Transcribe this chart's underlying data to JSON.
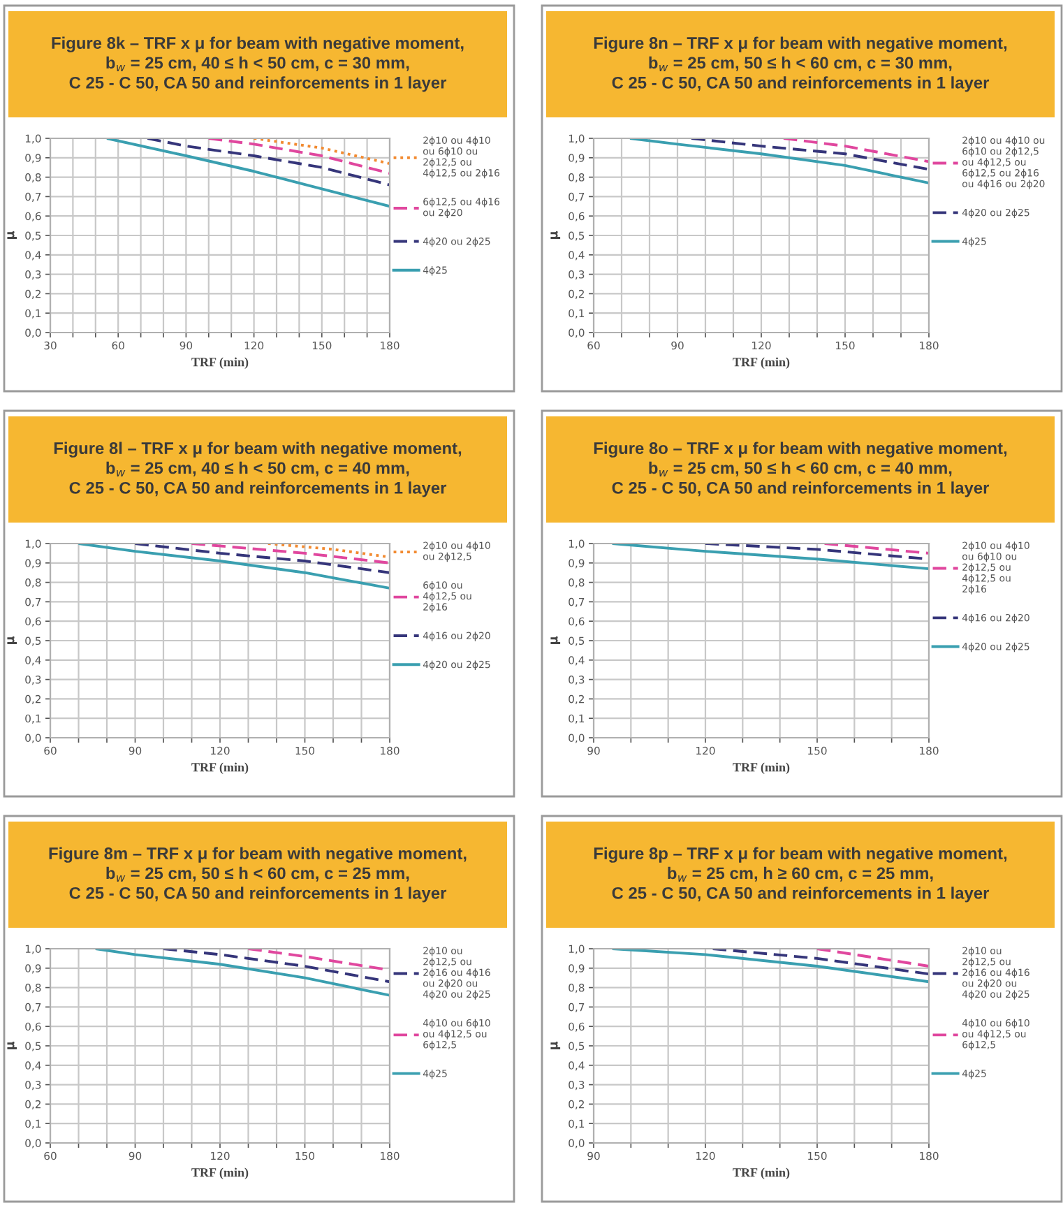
{
  "chart_data": [
    {
      "type": "line",
      "title": "Figure 8k – TRF x μ for beam with negative moment,\nb$_{w}$ = 25 cm, 40 ≤ h < 50 cm, c = 30 mm,\nC 25 - C 50, CA 50 and reinforcements in 1 layer",
      "xlabel": "TRF (min)",
      "ylabel": "μ",
      "xlim": [
        30,
        180
      ],
      "xticks": [
        30,
        {
          "value": 40,
          "label": null
        },
        {
          "value": 50,
          "label": null
        },
        60,
        {
          "value": 70,
          "label": null
        },
        {
          "value": 80,
          "label": null
        },
        90,
        {
          "value": 100,
          "label": null
        },
        {
          "value": 110,
          "label": null
        },
        120,
        {
          "value": 130,
          "label": null
        },
        {
          "value": 140,
          "label": null
        },
        150,
        {
          "value": 160,
          "label": null
        },
        {
          "value": 170,
          "label": null
        },
        180
      ],
      "ylim": [
        0,
        1
      ],
      "yticks": [
        {
          "value": 0,
          "label": "0,0"
        },
        {
          "value": 0.1,
          "label": "0,1"
        },
        {
          "value": 0.2,
          "label": "0,2"
        },
        {
          "value": 0.3,
          "label": "0,3"
        },
        {
          "value": 0.4,
          "label": "0,4"
        },
        {
          "value": 0.5,
          "label": "0,5"
        },
        {
          "value": 0.6,
          "label": "0,6"
        },
        {
          "value": 0.7,
          "label": "0,7"
        },
        {
          "value": 0.8,
          "label": "0,8"
        },
        {
          "value": 0.9,
          "label": "0,9"
        },
        {
          "value": 1,
          "label": "1,0"
        }
      ],
      "grid": true,
      "legend": "right",
      "series": [
        {
          "name": "2ϕ10 ou 4ϕ10\nou 6ϕ10 ou\n2ϕ12,5 ou\n4ϕ12,5 ou 2ϕ16",
          "color": "#f28a30",
          "line_style": "dotted",
          "x": [
            120,
            150,
            180
          ],
          "values": [
            1.0,
            0.95,
            0.87
          ]
        },
        {
          "name": "6ϕ12,5 ou 4ϕ16\nou 2ϕ20",
          "color": "#e0479e",
          "line_style": "dashed",
          "x": [
            100,
            120,
            150,
            180
          ],
          "values": [
            1.0,
            0.97,
            0.91,
            0.82
          ]
        },
        {
          "name": "4ϕ20 ou 2ϕ25",
          "color": "#35357a",
          "line_style": "dashed",
          "x": [
            73,
            90,
            120,
            150,
            180
          ],
          "values": [
            1.0,
            0.96,
            0.91,
            0.85,
            0.76
          ]
        },
        {
          "name": "4ϕ25",
          "color": "#3a9fb0",
          "line_style": "solid",
          "x": [
            55,
            90,
            120,
            150,
            180
          ],
          "values": [
            1.0,
            0.91,
            0.83,
            0.74,
            0.65
          ]
        }
      ]
    },
    {
      "type": "line",
      "title": "Figure 8n – TRF x μ for beam with negative moment,\nb$_{w}$ = 25 cm, 50 ≤ h < 60 cm, c = 30 mm,\nC 25 - C 50, CA 50 and reinforcements in 1 layer",
      "xlabel": "TRF (min)",
      "ylabel": "μ",
      "xlim": [
        60,
        180
      ],
      "xticks": [
        60,
        {
          "value": 70,
          "label": null
        },
        {
          "value": 80,
          "label": null
        },
        90,
        {
          "value": 100,
          "label": null
        },
        {
          "value": 110,
          "label": null
        },
        120,
        {
          "value": 130,
          "label": null
        },
        {
          "value": 140,
          "label": null
        },
        150,
        {
          "value": 160,
          "label": null
        },
        {
          "value": 170,
          "label": null
        },
        180
      ],
      "ylim": [
        0,
        1
      ],
      "yticks": [
        {
          "value": 0,
          "label": "0,0"
        },
        {
          "value": 0.1,
          "label": "0,1"
        },
        {
          "value": 0.2,
          "label": "0,2"
        },
        {
          "value": 0.3,
          "label": "0,3"
        },
        {
          "value": 0.4,
          "label": "0,4"
        },
        {
          "value": 0.5,
          "label": "0,5"
        },
        {
          "value": 0.6,
          "label": "0,6"
        },
        {
          "value": 0.7,
          "label": "0,7"
        },
        {
          "value": 0.8,
          "label": "0,8"
        },
        {
          "value": 0.9,
          "label": "0,9"
        },
        {
          "value": 1,
          "label": "1,0"
        }
      ],
      "grid": true,
      "legend": "right",
      "series": [
        {
          "name": "2ϕ10 ou 4ϕ10 ou\n6ϕ10 ou 2ϕ12,5\nou 4ϕ12,5 ou\n6ϕ12,5 ou 2ϕ16\nou 4ϕ16 ou 2ϕ20",
          "color": "#e0479e",
          "line_style": "dashed",
          "x": [
            128,
            150,
            180
          ],
          "values": [
            1.0,
            0.96,
            0.88
          ]
        },
        {
          "name": "4ϕ20 ou 2ϕ25",
          "color": "#35357a",
          "line_style": "dashed",
          "x": [
            95,
            120,
            150,
            180
          ],
          "values": [
            1.0,
            0.96,
            0.92,
            0.84
          ]
        },
        {
          "name": "4ϕ25",
          "color": "#3a9fb0",
          "line_style": "solid",
          "x": [
            73,
            90,
            120,
            150,
            180
          ],
          "values": [
            1.0,
            0.97,
            0.92,
            0.86,
            0.77
          ]
        }
      ]
    },
    {
      "type": "line",
      "title": "Figure 8l – TRF x μ for beam with negative moment,\nb$_{w}$ = 25 cm, 40 ≤ h < 50 cm, c = 40 mm,\nC 25 - C 50, CA 50 and reinforcements in 1 layer",
      "xlabel": "TRF (min)",
      "ylabel": "μ",
      "xlim": [
        60,
        180
      ],
      "xticks": [
        60,
        {
          "value": 70,
          "label": null
        },
        {
          "value": 80,
          "label": null
        },
        90,
        {
          "value": 100,
          "label": null
        },
        {
          "value": 110,
          "label": null
        },
        120,
        {
          "value": 130,
          "label": null
        },
        {
          "value": 140,
          "label": null
        },
        150,
        {
          "value": 160,
          "label": null
        },
        {
          "value": 170,
          "label": null
        },
        180
      ],
      "ylim": [
        0,
        1
      ],
      "yticks": [
        {
          "value": 0,
          "label": "0,0"
        },
        {
          "value": 0.1,
          "label": "0,1"
        },
        {
          "value": 0.2,
          "label": "0,2"
        },
        {
          "value": 0.3,
          "label": "0,3"
        },
        {
          "value": 0.4,
          "label": "0,4"
        },
        {
          "value": 0.5,
          "label": "0,5"
        },
        {
          "value": 0.6,
          "label": "0,6"
        },
        {
          "value": 0.7,
          "label": "0,7"
        },
        {
          "value": 0.8,
          "label": "0,8"
        },
        {
          "value": 0.9,
          "label": "0,9"
        },
        {
          "value": 1,
          "label": "1,0"
        }
      ],
      "grid": true,
      "legend": "right",
      "series": [
        {
          "name": "2ϕ10 ou 4ϕ10\nou 2ϕ12,5",
          "color": "#f28a30",
          "line_style": "dotted",
          "x": [
            137,
            160,
            180
          ],
          "values": [
            1.0,
            0.97,
            0.93
          ]
        },
        {
          "name": "6ϕ10 ou\n4ϕ12,5 ou\n2ϕ16",
          "color": "#e0479e",
          "line_style": "dashed",
          "x": [
            110,
            150,
            180
          ],
          "values": [
            1.0,
            0.95,
            0.9
          ]
        },
        {
          "name": "4ϕ16 ou 2ϕ20",
          "color": "#35357a",
          "line_style": "dashed",
          "x": [
            90,
            120,
            150,
            180
          ],
          "values": [
            1.0,
            0.95,
            0.91,
            0.85
          ]
        },
        {
          "name": "4ϕ20 ou 2ϕ25",
          "color": "#3a9fb0",
          "line_style": "solid",
          "x": [
            70,
            90,
            120,
            150,
            180
          ],
          "values": [
            1.0,
            0.96,
            0.91,
            0.85,
            0.77
          ]
        }
      ]
    },
    {
      "type": "line",
      "title": "Figure 8o – TRF x μ for beam with negative moment,\nb$_{w}$ = 25 cm, 50 ≤ h < 60 cm, c = 40 mm,\nC 25 - C 50, CA 50 and reinforcements in 1 layer",
      "xlabel": "TRF (min)",
      "ylabel": "μ",
      "xlim": [
        90,
        180
      ],
      "xticks": [
        90,
        {
          "value": 100,
          "label": null
        },
        {
          "value": 110,
          "label": null
        },
        120,
        {
          "value": 130,
          "label": null
        },
        {
          "value": 140,
          "label": null
        },
        150,
        {
          "value": 160,
          "label": null
        },
        {
          "value": 170,
          "label": null
        },
        180
      ],
      "ylim": [
        0,
        1
      ],
      "yticks": [
        {
          "value": 0,
          "label": "0,0"
        },
        {
          "value": 0.1,
          "label": "0,1"
        },
        {
          "value": 0.2,
          "label": "0,2"
        },
        {
          "value": 0.3,
          "label": "0,3"
        },
        {
          "value": 0.4,
          "label": "0,4"
        },
        {
          "value": 0.5,
          "label": "0,5"
        },
        {
          "value": 0.6,
          "label": "0,6"
        },
        {
          "value": 0.7,
          "label": "0,7"
        },
        {
          "value": 0.8,
          "label": "0,8"
        },
        {
          "value": 0.9,
          "label": "0,9"
        },
        {
          "value": 1,
          "label": "1,0"
        }
      ],
      "grid": true,
      "legend": "right",
      "series": [
        {
          "name": "2ϕ10 ou 4ϕ10\nou 6ϕ10 ou\n2ϕ12,5 ou\n4ϕ12,5 ou\n2ϕ16",
          "color": "#e0479e",
          "line_style": "dashed",
          "x": [
            152,
            180
          ],
          "values": [
            1.0,
            0.95
          ]
        },
        {
          "name": "4ϕ16 ou 2ϕ20",
          "color": "#35357a",
          "line_style": "dashed",
          "x": [
            120,
            150,
            180
          ],
          "values": [
            1.0,
            0.97,
            0.92
          ]
        },
        {
          "name": "4ϕ20 ou 2ϕ25",
          "color": "#3a9fb0",
          "line_style": "solid",
          "x": [
            95,
            120,
            150,
            180
          ],
          "values": [
            1.0,
            0.96,
            0.92,
            0.87
          ]
        }
      ]
    },
    {
      "type": "line",
      "title": "Figure 8m – TRF x μ for beam with negative moment,\nb$_{w}$ = 25 cm, 50 ≤ h < 60 cm, c = 25 mm,\nC 25 - C 50, CA 50 and reinforcements in 1 layer",
      "xlabel": "TRF (min)",
      "ylabel": "μ",
      "xlim": [
        60,
        180
      ],
      "xticks": [
        60,
        {
          "value": 70,
          "label": null
        },
        {
          "value": 80,
          "label": null
        },
        90,
        {
          "value": 100,
          "label": null
        },
        {
          "value": 110,
          "label": null
        },
        120,
        {
          "value": 130,
          "label": null
        },
        {
          "value": 140,
          "label": null
        },
        150,
        {
          "value": 160,
          "label": null
        },
        {
          "value": 170,
          "label": null
        },
        180
      ],
      "ylim": [
        0,
        1
      ],
      "yticks": [
        {
          "value": 0,
          "label": "0,0"
        },
        {
          "value": 0.1,
          "label": "0,1"
        },
        {
          "value": 0.2,
          "label": "0,2"
        },
        {
          "value": 0.3,
          "label": "0,3"
        },
        {
          "value": 0.4,
          "label": "0,4"
        },
        {
          "value": 0.5,
          "label": "0,5"
        },
        {
          "value": 0.6,
          "label": "0,6"
        },
        {
          "value": 0.7,
          "label": "0,7"
        },
        {
          "value": 0.8,
          "label": "0,8"
        },
        {
          "value": 0.9,
          "label": "0,9"
        },
        {
          "value": 1,
          "label": "1,0"
        }
      ],
      "grid": true,
      "legend": "right",
      "series": [
        {
          "name": "2ϕ10 ou\n2ϕ12,5 ou\n2ϕ16 ou 4ϕ16\nou 2ϕ20 ou\n4ϕ20 ou 2ϕ25",
          "color": "#35357a",
          "line_style": "dashed",
          "x": [
            100,
            120,
            150,
            180
          ],
          "values": [
            1.0,
            0.97,
            0.91,
            0.83
          ]
        },
        {
          "name": "4ϕ10 ou 6ϕ10\nou 4ϕ12,5 ou\n6ϕ12,5",
          "color": "#e0479e",
          "line_style": "dashed",
          "x": [
            130,
            150,
            180
          ],
          "values": [
            1.0,
            0.96,
            0.89
          ]
        },
        {
          "name": "4ϕ25",
          "color": "#3a9fb0",
          "line_style": "solid",
          "x": [
            76,
            90,
            120,
            150,
            180
          ],
          "values": [
            1.0,
            0.97,
            0.92,
            0.85,
            0.76
          ]
        }
      ]
    },
    {
      "type": "line",
      "title": "Figure 8p – TRF x μ for beam with negative moment,\nb$_{w}$ = 25 cm, h ≥ 60 cm, c = 25 mm,\nC 25 - C 50, CA 50 and reinforcements in 1 layer",
      "xlabel": "TRF (min)",
      "ylabel": "μ",
      "xlim": [
        90,
        180
      ],
      "xticks": [
        90,
        {
          "value": 100,
          "label": null
        },
        {
          "value": 110,
          "label": null
        },
        120,
        {
          "value": 130,
          "label": null
        },
        {
          "value": 140,
          "label": null
        },
        150,
        {
          "value": 160,
          "label": null
        },
        {
          "value": 170,
          "label": null
        },
        180
      ],
      "ylim": [
        0,
        1
      ],
      "yticks": [
        {
          "value": 0,
          "label": "0,0"
        },
        {
          "value": 0.1,
          "label": "0,1"
        },
        {
          "value": 0.2,
          "label": "0,2"
        },
        {
          "value": 0.3,
          "label": "0,3"
        },
        {
          "value": 0.4,
          "label": "0,4"
        },
        {
          "value": 0.5,
          "label": "0,5"
        },
        {
          "value": 0.6,
          "label": "0,6"
        },
        {
          "value": 0.7,
          "label": "0,7"
        },
        {
          "value": 0.8,
          "label": "0,8"
        },
        {
          "value": 0.9,
          "label": "0,9"
        },
        {
          "value": 1,
          "label": "1,0"
        }
      ],
      "grid": true,
      "legend": "right",
      "series": [
        {
          "name": "2ϕ10 ou\n2ϕ12,5 ou\n2ϕ16 ou 4ϕ16\nou 2ϕ20 ou\n4ϕ20 ou 2ϕ25",
          "color": "#35357a",
          "line_style": "dashed",
          "x": [
            122,
            150,
            180
          ],
          "values": [
            1.0,
            0.95,
            0.87
          ]
        },
        {
          "name": "4ϕ10 ou 6ϕ10\nou 4ϕ12,5 ou\n6ϕ12,5",
          "color": "#e0479e",
          "line_style": "dashed",
          "x": [
            150,
            180
          ],
          "values": [
            1.0,
            0.91
          ]
        },
        {
          "name": "4ϕ25",
          "color": "#3a9fb0",
          "line_style": "solid",
          "x": [
            95,
            120,
            150,
            180
          ],
          "values": [
            1.0,
            0.97,
            0.91,
            0.83
          ]
        }
      ]
    }
  ]
}
